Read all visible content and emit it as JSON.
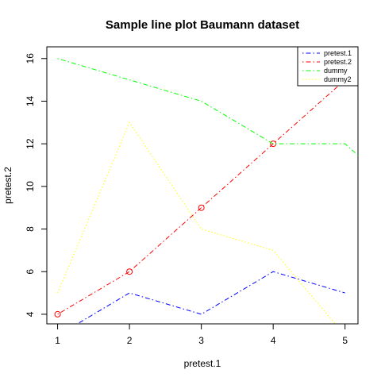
{
  "chart_data": {
    "type": "line",
    "title": "Sample line plot  Baumann dataset",
    "xlabel": "pretest.1",
    "ylabel": "pretest.2",
    "xlim": [
      0.85,
      5.18
    ],
    "ylim": [
      3.55,
      16.55
    ],
    "x_ticks": [
      1,
      2,
      3,
      4,
      5
    ],
    "y_ticks": [
      4,
      6,
      8,
      10,
      12,
      14,
      16
    ],
    "grid": false,
    "legend_position": "top-right",
    "series": [
      {
        "name": "pretest.1",
        "color": "#0000ff",
        "dash": "dotdash",
        "markers": false,
        "points": [
          [
            1,
            3
          ],
          [
            2,
            5
          ],
          [
            3,
            4
          ],
          [
            4,
            6
          ],
          [
            5,
            5
          ]
        ]
      },
      {
        "name": "pretest.2",
        "color": "#ff0000",
        "dash": "dotdash",
        "markers": true,
        "points": [
          [
            1,
            4
          ],
          [
            2,
            6
          ],
          [
            3,
            9
          ],
          [
            4,
            12
          ],
          [
            5,
            15
          ]
        ]
      },
      {
        "name": "dummy",
        "color": "#00ff00",
        "dash": "dotdash",
        "markers": false,
        "points": [
          [
            1,
            16
          ],
          [
            2,
            15
          ],
          [
            3,
            14
          ],
          [
            4,
            12
          ],
          [
            5,
            12
          ],
          [
            6,
            9
          ]
        ]
      },
      {
        "name": "dummy2",
        "color": "#ffff00",
        "dash": "dotted",
        "markers": false,
        "points": [
          [
            1,
            5
          ],
          [
            2,
            13
          ],
          [
            3,
            8
          ],
          [
            4,
            7
          ],
          [
            5,
            3
          ],
          [
            6,
            5
          ]
        ]
      }
    ]
  }
}
